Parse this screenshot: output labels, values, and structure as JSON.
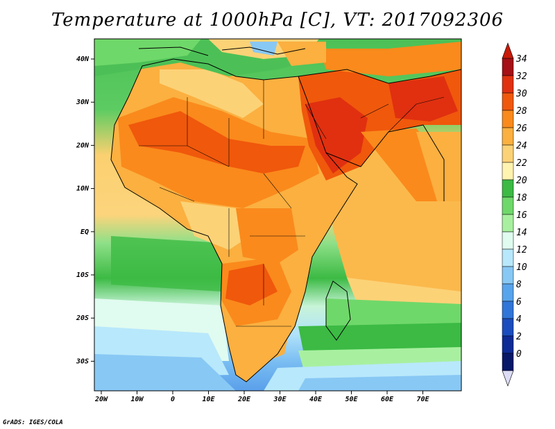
{
  "title": "Temperature at 1000hPa [C], VT: 2017092306",
  "credit": "GrADS: IGES/COLA",
  "map": {
    "lon_labels": [
      "20W",
      "10W",
      "0",
      "10E",
      "20E",
      "30E",
      "40E",
      "50E",
      "60E",
      "70E"
    ],
    "lat_labels": [
      "40N",
      "30N",
      "20N",
      "10N",
      "EQ",
      "10S",
      "20S",
      "30S"
    ]
  },
  "colorbar": {
    "labels": [
      "34",
      "32",
      "30",
      "28",
      "26",
      "24",
      "22",
      "20",
      "18",
      "16",
      "14",
      "12",
      "10",
      "8",
      "6",
      "4",
      "2",
      "0"
    ],
    "colors": [
      "#a50f15",
      "#e03010",
      "#f0580c",
      "#fa8a1c",
      "#fbb040",
      "#fcd277",
      "#fff3b0",
      "#3cba44",
      "#6fd86a",
      "#a8f0a0",
      "#e0fbf0",
      "#b8e8fb",
      "#88c8f5",
      "#58a4ec",
      "#3075d8",
      "#1a4cbf",
      "#0d2a96",
      "#081868"
    ],
    "top_arrow_color": "#c81a08",
    "bottom_arrow_color": "#dcdcf5"
  }
}
